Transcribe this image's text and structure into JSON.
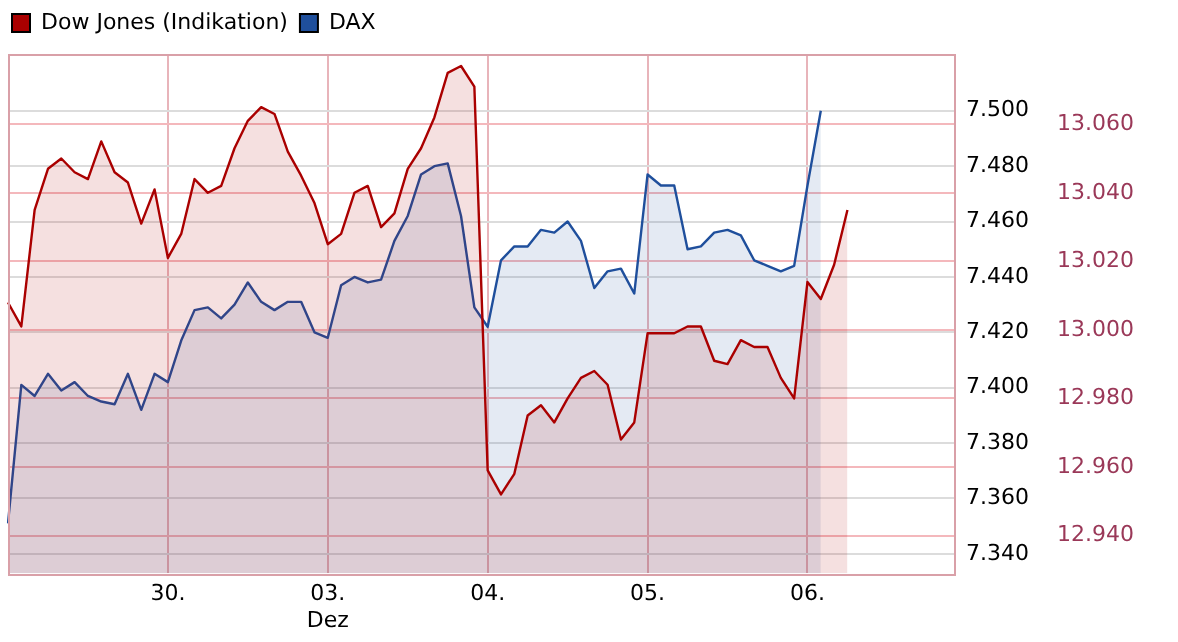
{
  "chart_data": {
    "type": "area",
    "legend": "top left",
    "grid": true,
    "marker": "none",
    "line_style": "solid",
    "categories": [
      null,
      null,
      null,
      null,
      null,
      null,
      null,
      null,
      null,
      null,
      null,
      null,
      "30.",
      null,
      null,
      null,
      null,
      null,
      null,
      null,
      null,
      null,
      null,
      null,
      "03.\nDez",
      null,
      null,
      null,
      null,
      null,
      null,
      null,
      null,
      null,
      null,
      null,
      "04.",
      null,
      null,
      null,
      null,
      null,
      null,
      null,
      null,
      null,
      null,
      null,
      "05.",
      null,
      null,
      null,
      null,
      null,
      null,
      null,
      null,
      null,
      null,
      null,
      "06.",
      null,
      null,
      null,
      null,
      null,
      null,
      null,
      null,
      null,
      null,
      null
    ],
    "ylim": [
      7333,
      7520.5
    ],
    "yticks": [
      {
        "value": 7340,
        "label": "7.340"
      },
      {
        "value": 7360,
        "label": "7.360"
      },
      {
        "value": 7380,
        "label": "7.380"
      },
      {
        "value": 7400,
        "label": "7.400"
      },
      {
        "value": 7420,
        "label": "7.420"
      },
      {
        "value": 7440,
        "label": "7.440"
      },
      {
        "value": 7460,
        "label": "7.460"
      },
      {
        "value": 7480,
        "label": "7.480"
      },
      {
        "value": 7500,
        "label": "7.500"
      }
    ],
    "y2lim": [
      12929,
      13080.5
    ],
    "y2ticks": [
      {
        "value": 12940,
        "label": "12.940"
      },
      {
        "value": 12960,
        "label": "12.960"
      },
      {
        "value": 12980,
        "label": "12.980"
      },
      {
        "value": 13000,
        "label": "13.000"
      },
      {
        "value": 13020,
        "label": "13.020"
      },
      {
        "value": 13040,
        "label": "13.040"
      },
      {
        "value": 13060,
        "label": "13.060"
      }
    ],
    "series": [
      {
        "name": "Dow Jones (Indikation)",
        "color": "#aa0000",
        "axis": "y2",
        "values": [
          13008,
          13001,
          13035,
          13047,
          13050,
          13046,
          13044,
          13055,
          13046,
          13043,
          13031,
          13041,
          13021,
          13028,
          13044,
          13040,
          13042,
          13053,
          13061,
          13065,
          13063,
          13052,
          13045,
          13037,
          13025,
          13028,
          13040,
          13042,
          13030,
          13034,
          13047,
          13053,
          13062,
          13075,
          13077,
          13071,
          12959,
          12952,
          12958,
          12975,
          12978,
          12973,
          12980,
          12986,
          12988,
          12984,
          12968,
          12973,
          12999,
          12999,
          12999,
          13001,
          13001,
          12991,
          12990,
          12997,
          12995,
          12995,
          12986,
          12980,
          13014,
          13009,
          13019,
          13035,
          null,
          null,
          null,
          null,
          null,
          null,
          null,
          null
        ]
      },
      {
        "name": "DAX",
        "color": "#1f4f9c",
        "axis": "y",
        "values": [
          7351,
          7401,
          7397,
          7405,
          7399,
          7402,
          7397,
          7395,
          7394,
          7405,
          7392,
          7405,
          7402,
          7417,
          7428,
          7429,
          7425,
          7430,
          7438,
          7431,
          7428,
          7431,
          7431,
          7420,
          7418,
          7437,
          7440,
          7438,
          7439,
          7453,
          7462,
          7477,
          7480,
          7481,
          7462,
          7429,
          7422,
          7446,
          7451,
          7451,
          7457,
          7456,
          7460,
          7453,
          7436,
          7442,
          7443,
          7434,
          7477,
          7473,
          7473,
          7450,
          7451,
          7456,
          7457,
          7455,
          7446,
          7444,
          7442,
          7444,
          7473,
          7500,
          null,
          null,
          null,
          null,
          null,
          null,
          null,
          null,
          null,
          null
        ]
      }
    ]
  }
}
